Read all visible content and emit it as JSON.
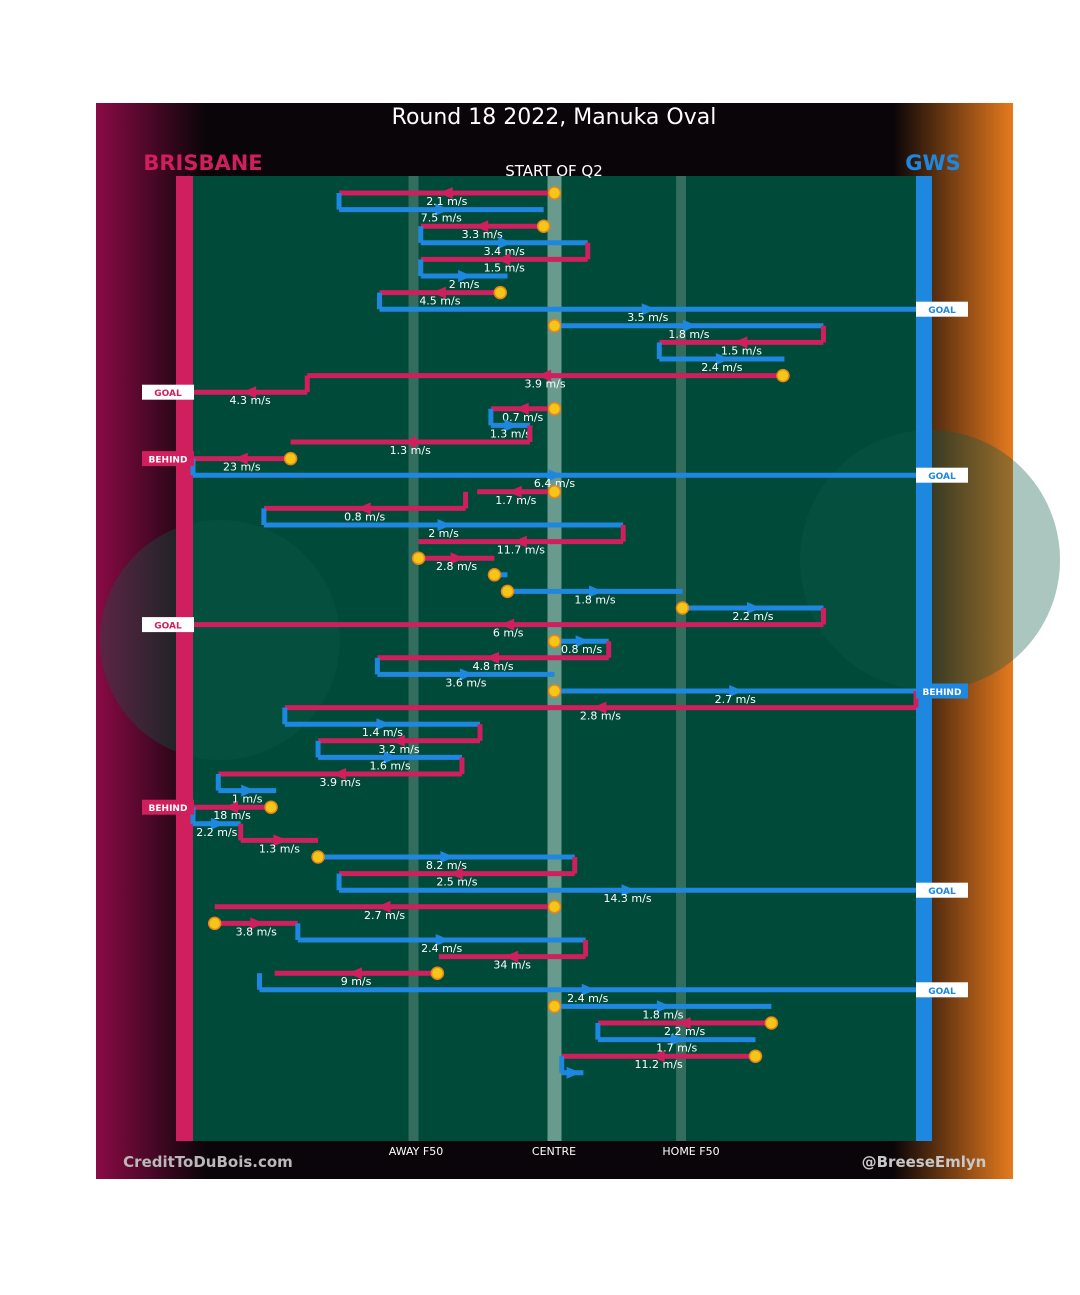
{
  "title": "Round 18 2022, Manuka Oval",
  "subtitle": "START OF Q2",
  "teams": {
    "away": {
      "name": "BRISBANE",
      "color": "#cf1f5c"
    },
    "home": {
      "name": "GWS",
      "color": "#1e88e0"
    }
  },
  "zone_labels": {
    "away_f50": "AWAY F50",
    "centre": "CENTRE",
    "home_f50": "HOME F50"
  },
  "credits": {
    "left": "CreditToDuBois.com",
    "right": "@BreeseEmlyn"
  },
  "colors": {
    "field": "#004a3a",
    "background": "#0a0508",
    "away_gradient_dark": "#5a0030",
    "home_gradient_dark": "#e0701c",
    "stoppage_marker": "#f5c518",
    "badge_bg": "#ffffff"
  },
  "chart_data": {
    "type": "chain-timeline",
    "x_axis": "ground position, 0 = Brisbane goal, 100 = GWS goal",
    "xlim": [
      0,
      100
    ],
    "reference_lines": [
      {
        "name": "AWAY F50",
        "x": 30.5
      },
      {
        "name": "CENTRE",
        "x": 50
      },
      {
        "name": "HOME F50",
        "x": 67.5
      }
    ],
    "legs": [
      {
        "team": "away",
        "from": 50,
        "to": 20.2,
        "speed": "2.1 m/s",
        "stoppage": true
      },
      {
        "team": "home",
        "from": 20.2,
        "to": 48.5,
        "speed": "7.5 m/s"
      },
      {
        "team": "away",
        "from": 48.5,
        "to": 31.5,
        "speed": "3.3 m/s",
        "stoppage": true
      },
      {
        "team": "home",
        "from": 31.5,
        "to": 54.6,
        "speed": "3.4 m/s"
      },
      {
        "team": "away",
        "from": 54.6,
        "to": 31.5,
        "speed": "1.5 m/s"
      },
      {
        "team": "home",
        "from": 31.5,
        "to": 43.5,
        "speed": "2 m/s"
      },
      {
        "team": "away",
        "from": 42.5,
        "to": 25.8,
        "speed": "4.5 m/s",
        "stoppage": true
      },
      {
        "team": "home",
        "from": 25.8,
        "to": 100,
        "speed": "3.5 m/s",
        "outcome": "GOAL"
      },
      {
        "team": "home",
        "from": 50,
        "to": 87.2,
        "speed": "1.8 m/s",
        "stoppage": true
      },
      {
        "team": "away",
        "from": 87.2,
        "to": 64.5,
        "speed": "1.5 m/s"
      },
      {
        "team": "home",
        "from": 64.5,
        "to": 81.8,
        "speed": "2.4 m/s"
      },
      {
        "team": "away",
        "from": 81.6,
        "to": 15.8,
        "speed": "3.9 m/s",
        "stoppage": true
      },
      {
        "team": "away",
        "from": 15.8,
        "to": 0,
        "speed": "4.3 m/s",
        "outcome": "GOAL"
      },
      {
        "team": "away",
        "from": 50,
        "to": 41.2,
        "speed": "0.7 m/s",
        "stoppage": true
      },
      {
        "team": "home",
        "from": 41.2,
        "to": 46.6,
        "speed": "1.3 m/s"
      },
      {
        "team": "away",
        "from": 46.6,
        "to": 13.5,
        "speed": "1.3 m/s"
      },
      {
        "team": "away",
        "from": 13.5,
        "to": 0,
        "speed": "23 m/s",
        "outcome": "BEHIND",
        "stoppage": true
      },
      {
        "team": "home",
        "from": 0,
        "to": 100,
        "speed": "6.4 m/s",
        "outcome": "GOAL"
      },
      {
        "team": "away",
        "from": 50,
        "to": 39.3,
        "speed": "1.7 m/s",
        "stoppage": true
      },
      {
        "team": "away",
        "from": 37.7,
        "to": 9.8,
        "speed": "0.8 m/s"
      },
      {
        "team": "home",
        "from": 9.8,
        "to": 59.5,
        "speed": "2 m/s"
      },
      {
        "team": "away",
        "from": 59.5,
        "to": 31.2,
        "speed": "11.7 m/s"
      },
      {
        "team": "away",
        "from": 31.2,
        "to": 41.7,
        "speed": "2.8 m/s",
        "stoppage": true
      },
      {
        "team": "home",
        "from": 41.7,
        "to": 43.5,
        "speed": "",
        "stoppage": true
      },
      {
        "team": "home",
        "from": 43.5,
        "to": 67.7,
        "speed": "1.8 m/s",
        "stoppage": true
      },
      {
        "team": "home",
        "from": 67.7,
        "to": 87.2,
        "speed": "2.2 m/s",
        "stoppage": true
      },
      {
        "team": "away",
        "from": 87.2,
        "to": 0,
        "speed": "6 m/s",
        "outcome": "GOAL"
      },
      {
        "team": "home",
        "from": 50,
        "to": 57.5,
        "speed": "0.8 m/s",
        "stoppage": true
      },
      {
        "team": "away",
        "from": 57.5,
        "to": 25.5,
        "speed": "4.8 m/s"
      },
      {
        "team": "home",
        "from": 25.5,
        "to": 50,
        "speed": "3.6 m/s"
      },
      {
        "team": "home",
        "from": 50,
        "to": 100,
        "speed": "2.7 m/s",
        "outcome": "BEHIND",
        "stoppage": true
      },
      {
        "team": "away",
        "from": 100,
        "to": 12.7,
        "speed": "2.8 m/s"
      },
      {
        "team": "home",
        "from": 12.7,
        "to": 39.7,
        "speed": "1.4 m/s"
      },
      {
        "team": "away",
        "from": 39.7,
        "to": 17.3,
        "speed": "3.2 m/s"
      },
      {
        "team": "home",
        "from": 17.3,
        "to": 37.2,
        "speed": "1.6 m/s"
      },
      {
        "team": "away",
        "from": 37.2,
        "to": 3.5,
        "speed": "3.9 m/s"
      },
      {
        "team": "home",
        "from": 3.5,
        "to": 11.5,
        "speed": "1 m/s"
      },
      {
        "team": "away",
        "from": 10.8,
        "to": 0,
        "speed": "18 m/s",
        "outcome": "BEHIND",
        "stoppage": true
      },
      {
        "team": "home",
        "from": 0,
        "to": 6.6,
        "speed": "2.2 m/s"
      },
      {
        "team": "away",
        "from": 6.6,
        "to": 17.3,
        "speed": "1.3 m/s"
      },
      {
        "team": "home",
        "from": 17.3,
        "to": 52.8,
        "speed": "8.2 m/s",
        "stoppage": true
      },
      {
        "team": "away",
        "from": 52.8,
        "to": 20.2,
        "speed": "2.5 m/s"
      },
      {
        "team": "home",
        "from": 20.2,
        "to": 100,
        "speed": "14.3 m/s",
        "outcome": "GOAL"
      },
      {
        "team": "away",
        "from": 50,
        "to": 3.0,
        "speed": "2.7 m/s",
        "stoppage": true
      },
      {
        "team": "away",
        "from": 3.0,
        "to": 14.5,
        "speed": "3.8 m/s",
        "stoppage": true
      },
      {
        "team": "home",
        "from": 14.5,
        "to": 54.3,
        "speed": "2.4 m/s"
      },
      {
        "team": "away",
        "from": 54.3,
        "to": 34.0,
        "speed": "34 m/s"
      },
      {
        "team": "away",
        "from": 33.8,
        "to": 11.3,
        "speed": "9 m/s",
        "stoppage": true
      },
      {
        "team": "home",
        "from": 9.2,
        "to": 100,
        "speed": "2.4 m/s",
        "outcome": "GOAL"
      },
      {
        "team": "home",
        "from": 50,
        "to": 80.0,
        "speed": "1.8 m/s",
        "stoppage": true
      },
      {
        "team": "away",
        "from": 80.0,
        "to": 56.0,
        "speed": "2.2 m/s",
        "stoppage": true
      },
      {
        "team": "home",
        "from": 56.0,
        "to": 77.8,
        "speed": "1.7 m/s"
      },
      {
        "team": "away",
        "from": 77.8,
        "to": 51.0,
        "speed": "11.2 m/s",
        "stoppage": true
      },
      {
        "team": "home",
        "from": 51.0,
        "to": 54.0,
        "speed": ""
      }
    ]
  }
}
